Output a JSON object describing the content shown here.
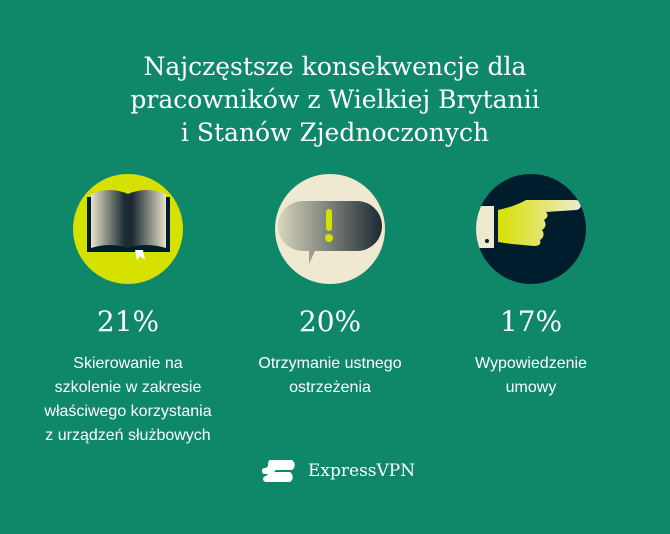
{
  "title": [
    "Najczęstsze konsekwencje dla",
    "pracowników z Wielkiej Brytanii",
    "i Stanów Zjednoczonych"
  ],
  "stats": [
    {
      "icon": "book-icon",
      "circle_color": "#d6e100",
      "value": "21%",
      "desc": [
        "Skierowanie na",
        "szkolenie w zakresie",
        "właściwego korzystania",
        "z urządzeń służbowych"
      ]
    },
    {
      "icon": "warning-speech-bubble-icon",
      "circle_color": "#efe9d1",
      "value": "20%",
      "desc": [
        "Otrzymanie ustnego",
        "ostrzeżenia"
      ]
    },
    {
      "icon": "pointing-hand-icon",
      "circle_color": "#001d2e",
      "value": "17%",
      "desc": [
        "Wypowiedzenie",
        "umowy"
      ]
    }
  ],
  "brand": {
    "name": "ExpressVPN"
  },
  "colors": {
    "background": "#0f8769",
    "accent": "#d6e100",
    "cream": "#efe9d1",
    "navy": "#001d2e"
  }
}
